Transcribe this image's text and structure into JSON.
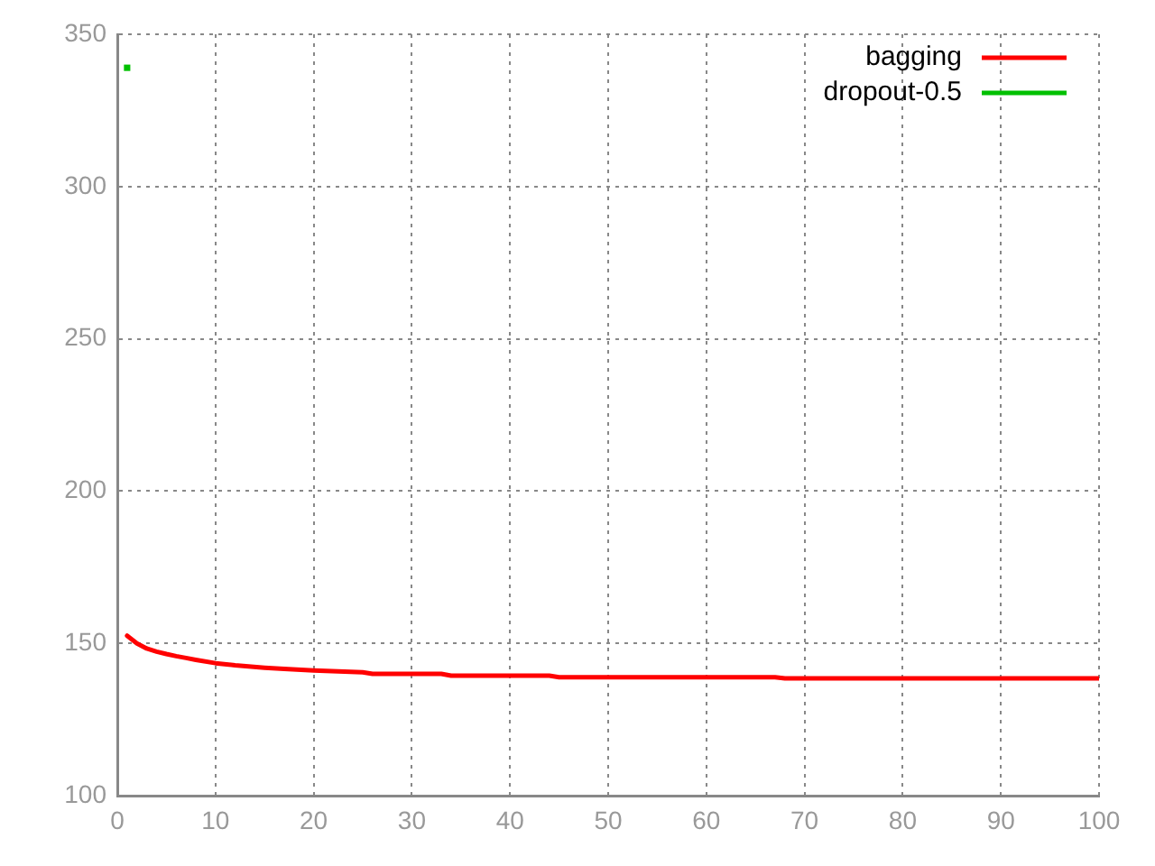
{
  "chart_data": {
    "type": "line",
    "xlim": [
      0,
      100
    ],
    "xticks": [
      0,
      10,
      20,
      30,
      40,
      50,
      60,
      70,
      80,
      90,
      100
    ],
    "ylim": [
      100,
      350
    ],
    "yticks": [
      100,
      150,
      200,
      250,
      300,
      350
    ],
    "grid": true,
    "legend": "top right",
    "marker": "none",
    "line_style": "solid",
    "series": [
      {
        "name": "bagging",
        "color": "#ff0000",
        "x": [
          1,
          2,
          3,
          4,
          5,
          6,
          7,
          8,
          10,
          12,
          15,
          17,
          20,
          25,
          26,
          33,
          34,
          44,
          45,
          67,
          68,
          100
        ],
        "values": [
          152.5,
          150,
          148.3,
          147.3,
          146.5,
          145.8,
          145.2,
          144.6,
          143.5,
          142.8,
          142,
          141.6,
          141.1,
          140.5,
          140,
          140,
          139.4,
          139.4,
          138.9,
          138.9,
          138.5,
          138.5
        ]
      },
      {
        "name": "dropout-0.5",
        "color": "#00c000",
        "marker": "square",
        "x": [
          1
        ],
        "values": [
          339
        ]
      }
    ]
  }
}
